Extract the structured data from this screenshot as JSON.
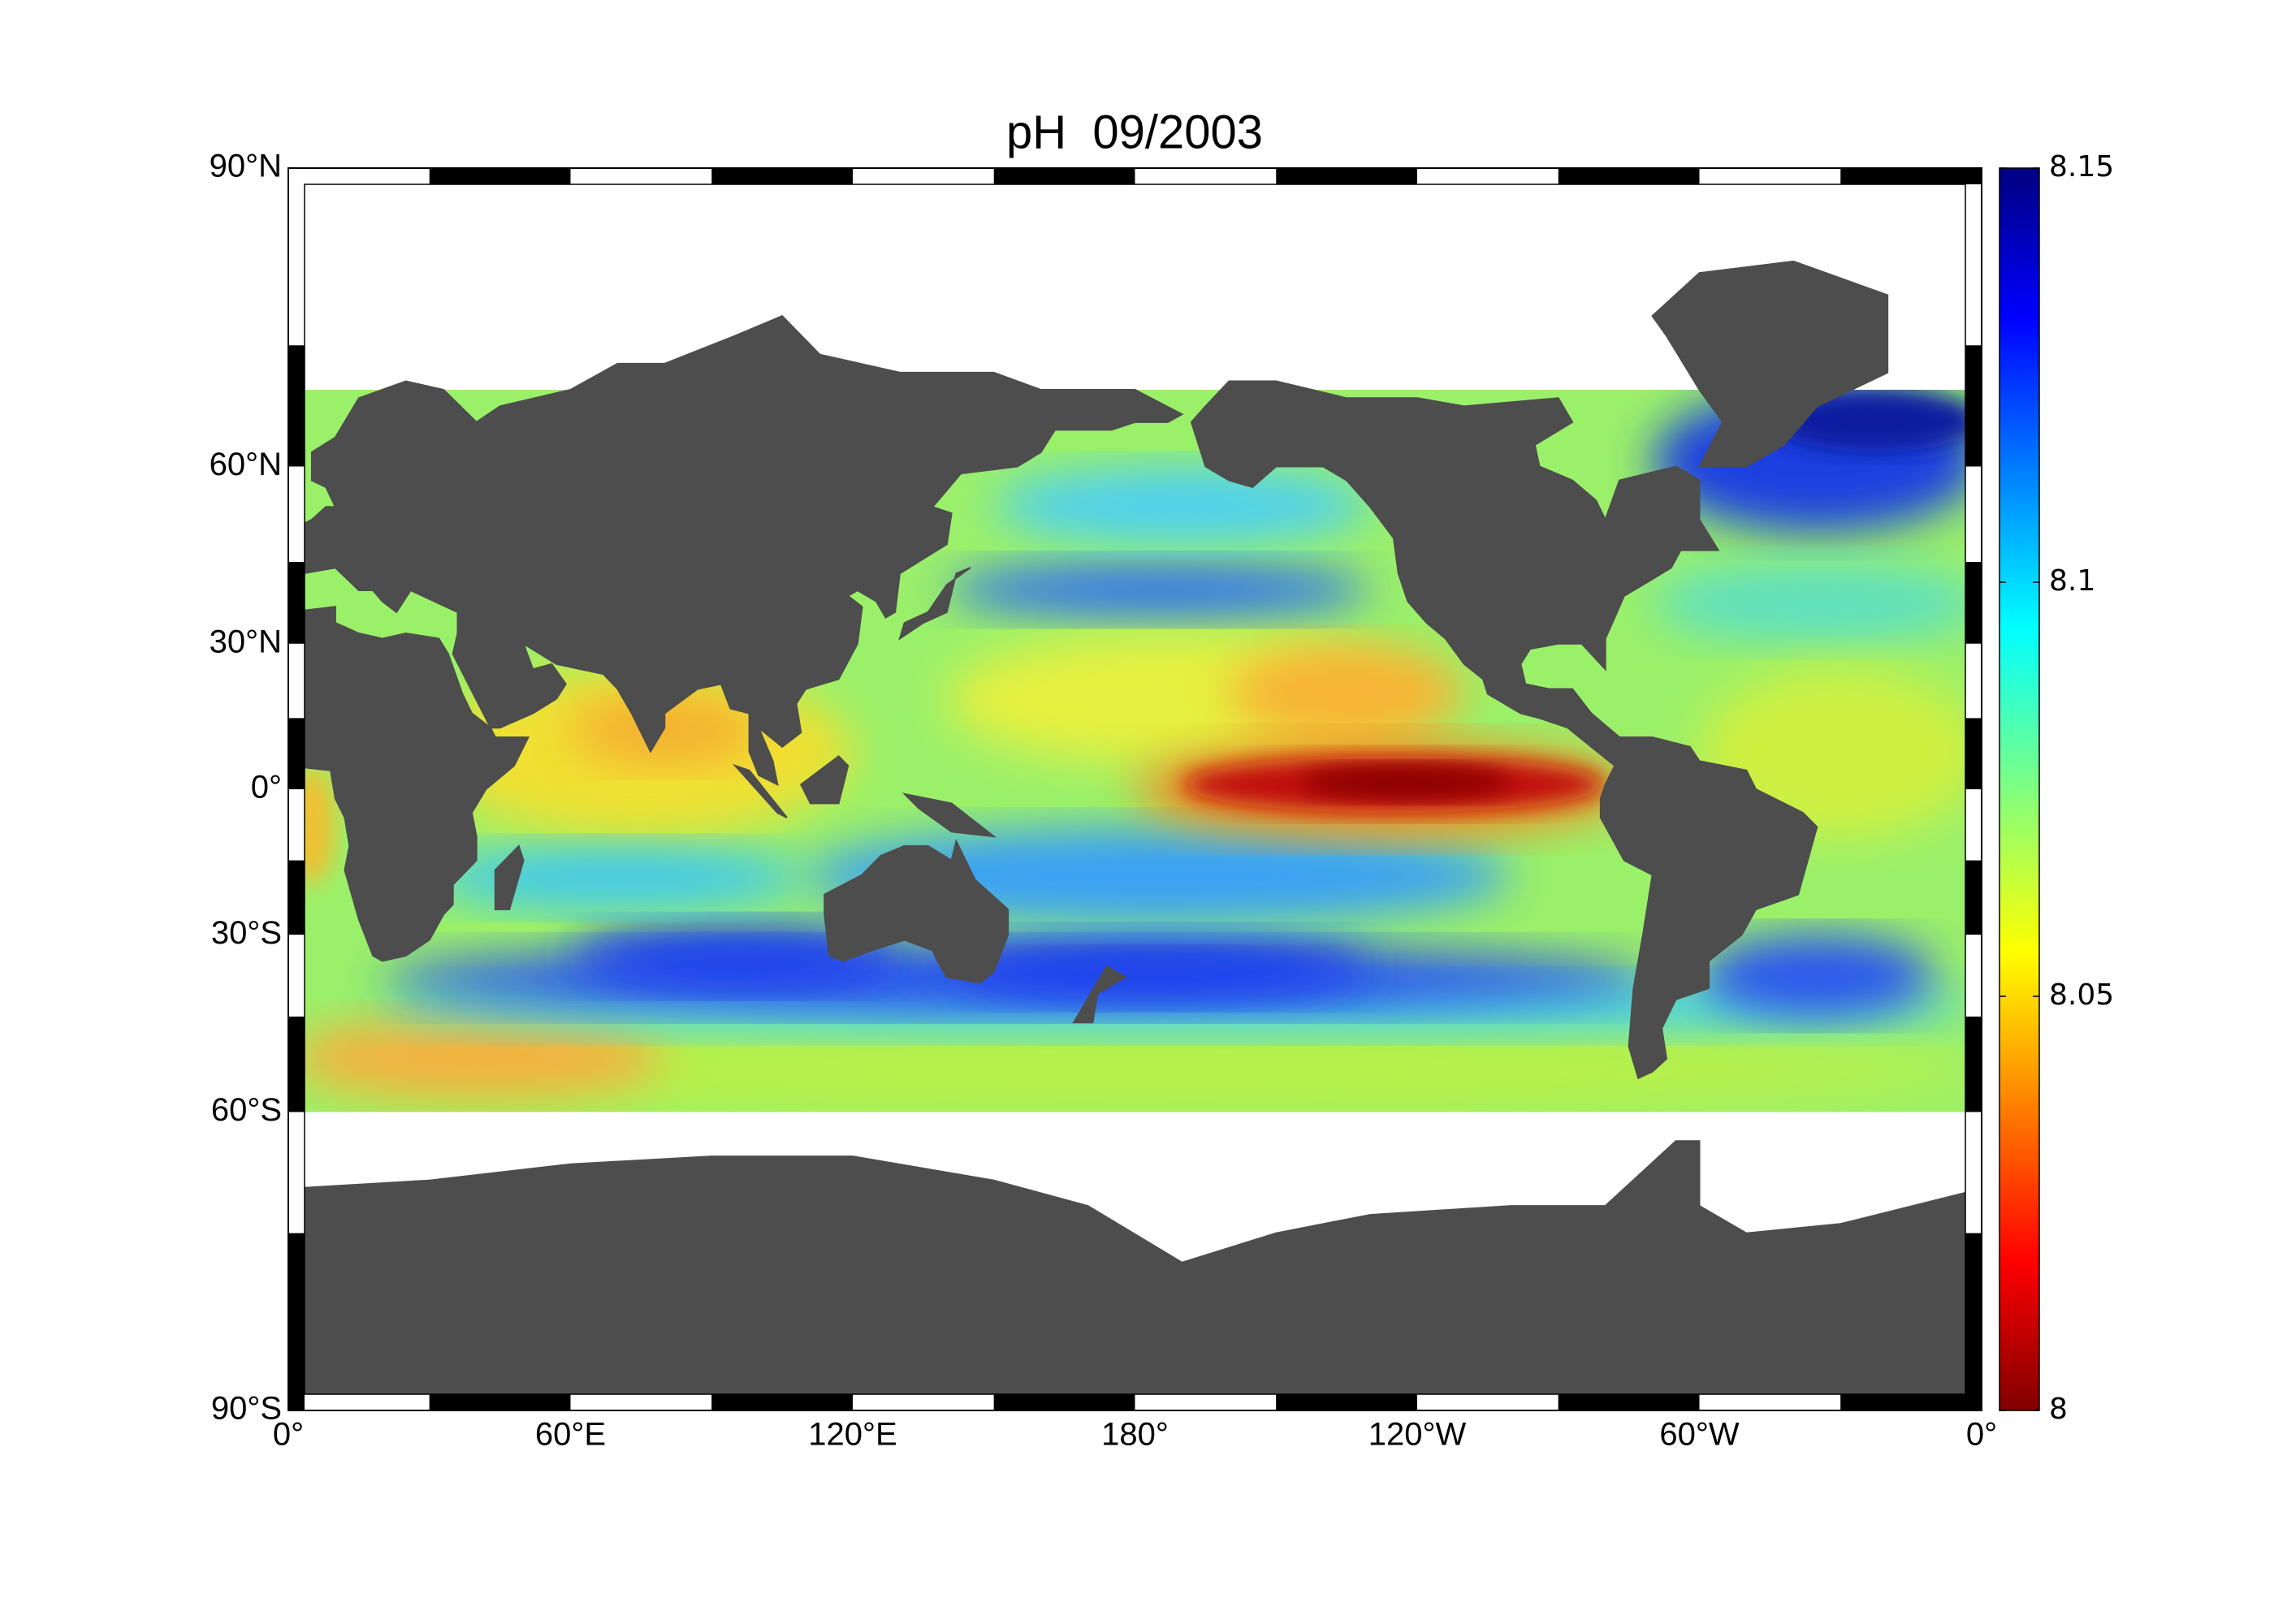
{
  "map": {
    "title": "pH  09/2003",
    "lat_labels": [
      "90°N",
      "60°N",
      "30°N",
      "0°",
      "30°S",
      "60°S",
      "90°S"
    ],
    "lon_labels": [
      "0°",
      "60°E",
      "120°E",
      "180°",
      "120°W",
      "60°W",
      "0°"
    ],
    "colorbar": {
      "clim": [
        8,
        8.15
      ],
      "ticks": [
        8,
        8.05,
        8.1,
        8.15
      ]
    }
  }
}
